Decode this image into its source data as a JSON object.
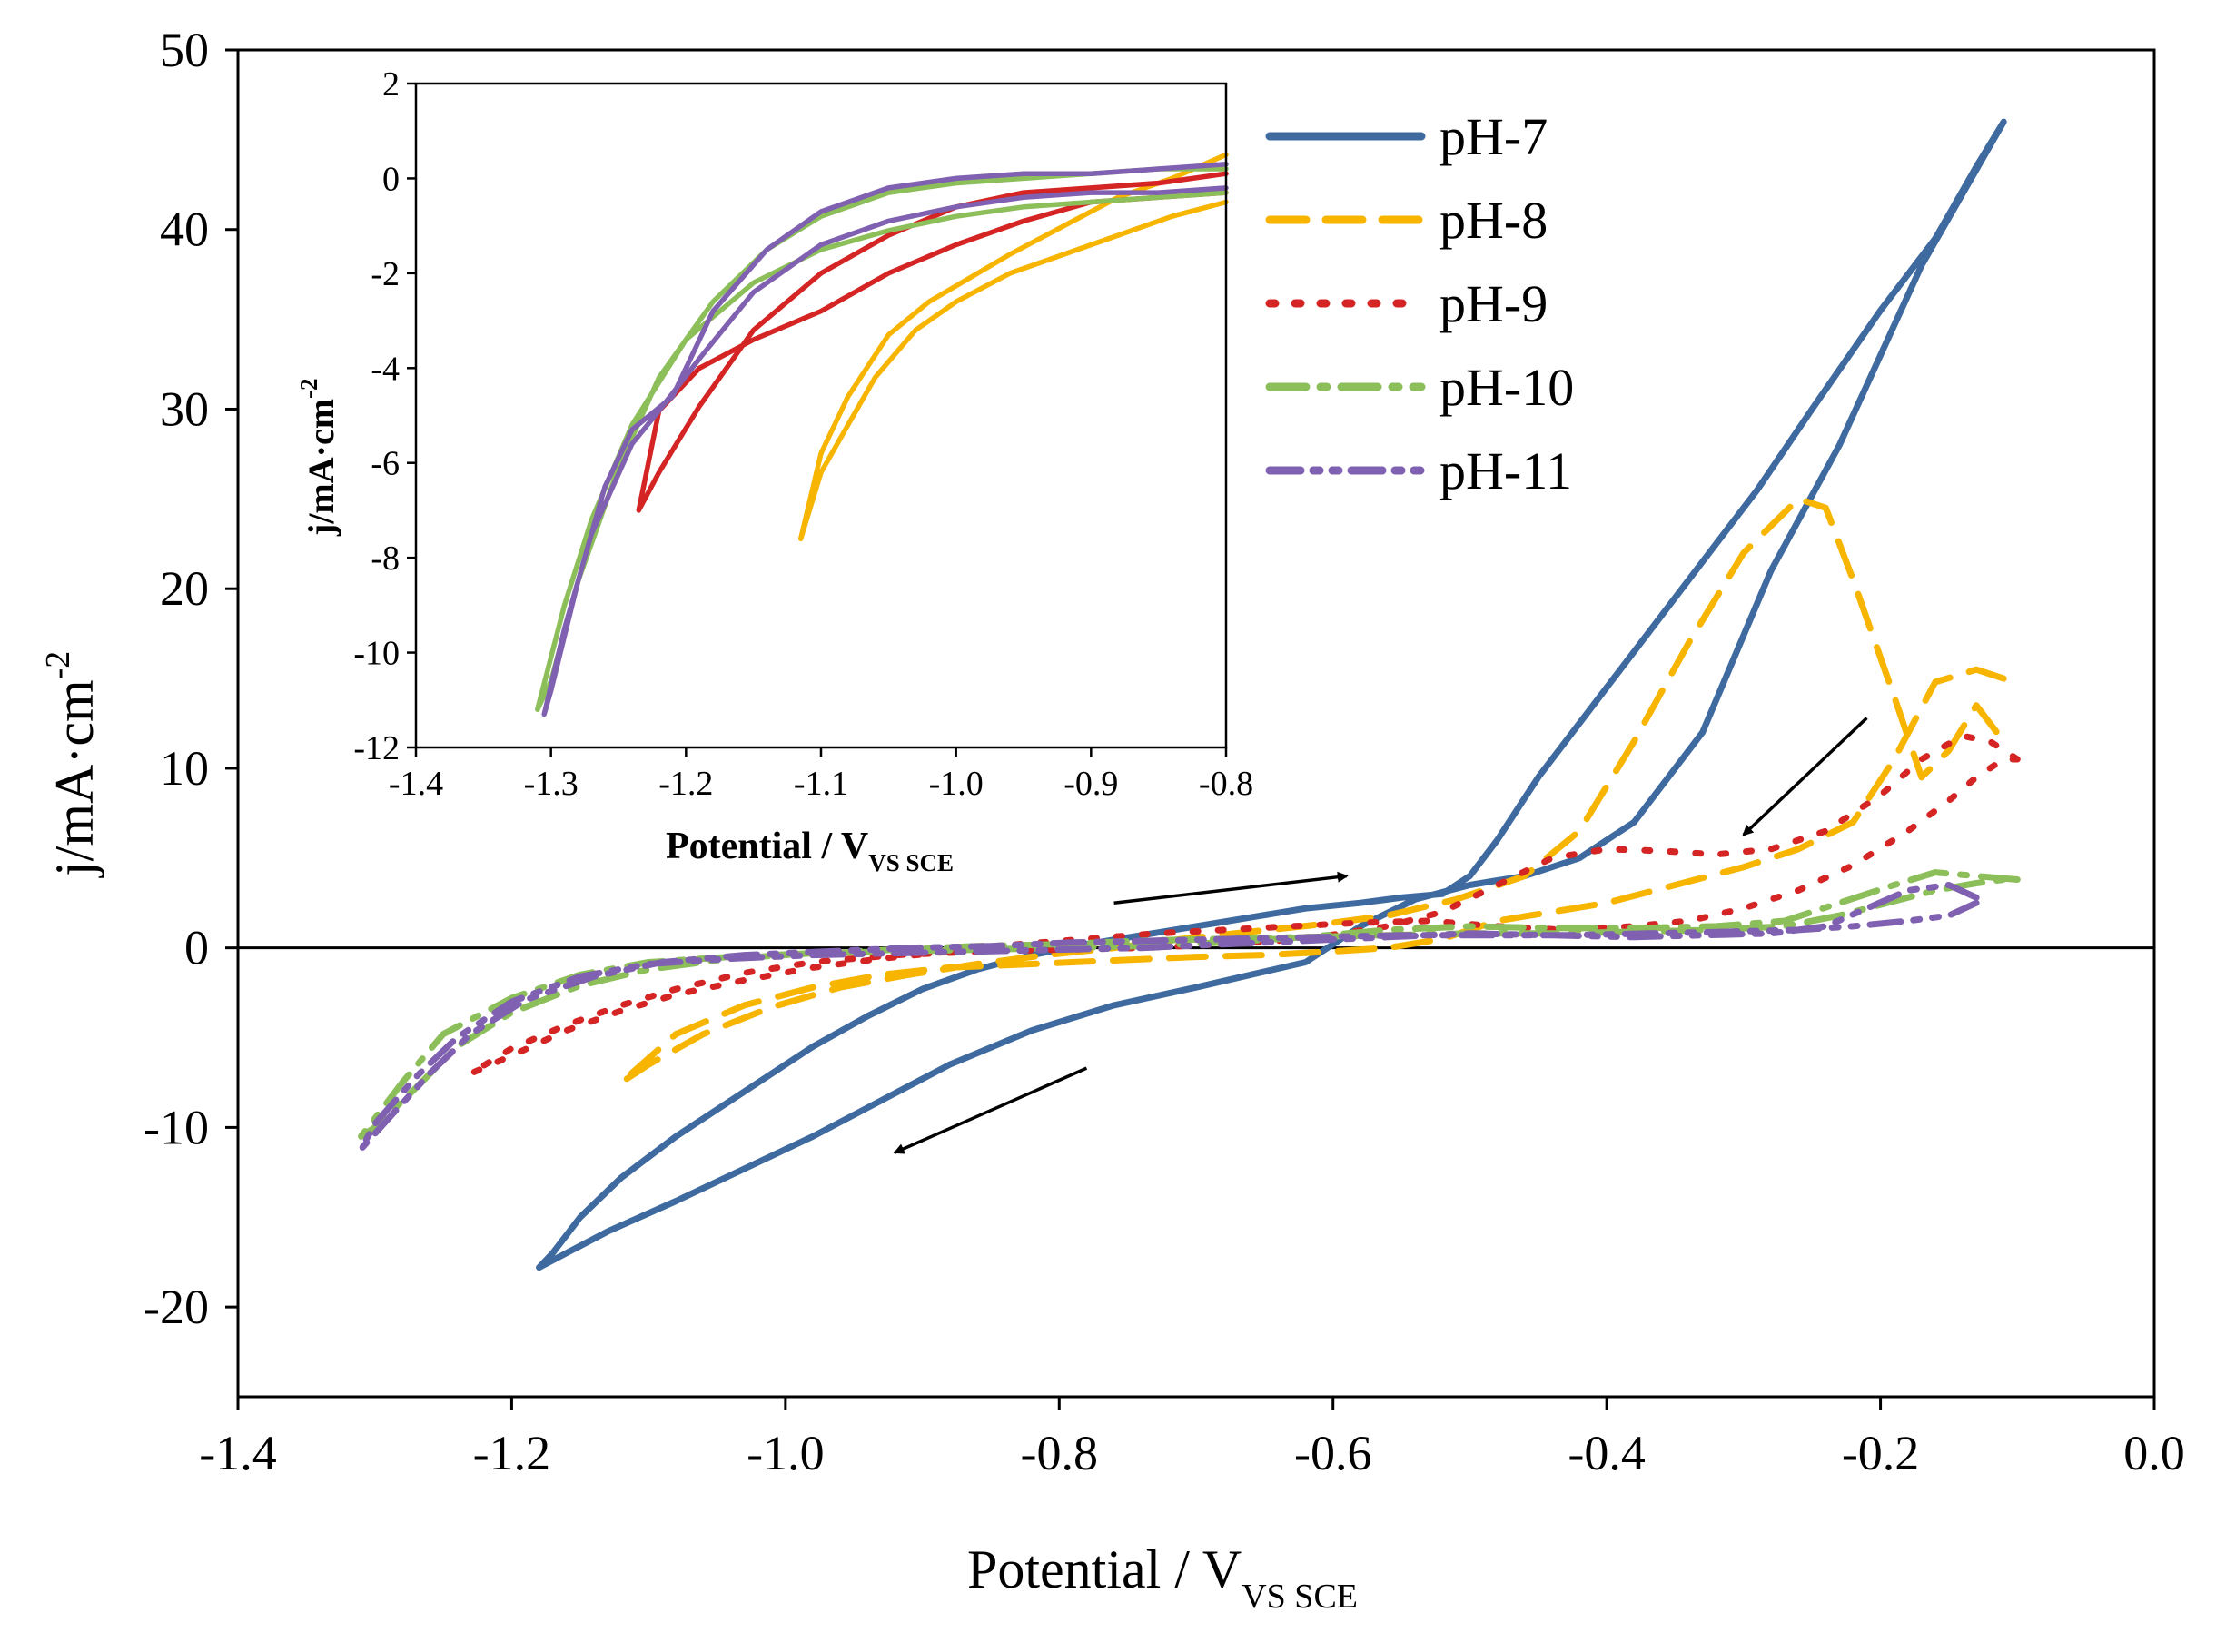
{
  "chart_data": [
    {
      "id": "main",
      "type": "line",
      "xlabel": "Potential / V",
      "xlabel_sub": "VS SCE",
      "ylabel": "j/mA·cm",
      "ylabel_sup": "-2",
      "xlim": [
        -1.4,
        0.0
      ],
      "ylim": [
        -25,
        50
      ],
      "xticks": [
        -1.4,
        -1.2,
        -1.0,
        -0.8,
        -0.6,
        -0.4,
        -0.2,
        0.0
      ],
      "xtick_labels": [
        "-1.4",
        "-1.2",
        "-1.0",
        "-0.8",
        "-0.6",
        "-0.4",
        "-0.2",
        "0.0"
      ],
      "yticks": [
        -20,
        -10,
        0,
        10,
        20,
        30,
        40,
        50
      ],
      "ytick_labels": [
        "-20",
        "-10",
        "0",
        "10",
        "20",
        "30",
        "40",
        "50"
      ],
      "zero_line": true,
      "legend_position": "top-right",
      "annotations": [
        {
          "type": "arrow",
          "from": [
            -0.76,
            2.5
          ],
          "to": [
            -0.59,
            4.0
          ]
        },
        {
          "type": "arrow",
          "from": [
            -0.21,
            12.8
          ],
          "to": [
            -0.3,
            6.3
          ]
        },
        {
          "type": "arrow",
          "from": [
            -0.78,
            -6.7
          ],
          "to": [
            -0.92,
            -11.4
          ]
        }
      ],
      "series": [
        {
          "name": "pH-7",
          "color": "#3f6aa0",
          "dash": "solid",
          "x": [
            -0.11,
            -0.14,
            -0.17,
            -0.2,
            -0.23,
            -0.28,
            -0.33,
            -0.38,
            -0.42,
            -0.46,
            -0.5,
            -0.54,
            -0.58,
            -0.62,
            -0.66,
            -0.7,
            -0.76,
            -0.82,
            -0.88,
            -0.93,
            -0.98,
            -1.03,
            -1.08,
            -1.13,
            -1.18,
            -1.17,
            -1.15,
            -1.12,
            -1.08,
            -1.03,
            -0.98,
            -0.94,
            -0.9,
            -0.86,
            -0.82,
            -0.78,
            -0.74,
            -0.7,
            -0.66,
            -0.62,
            -0.58,
            -0.55,
            -0.52,
            -0.5,
            -0.48,
            -0.45,
            -0.41,
            -0.37,
            -0.33,
            -0.29,
            -0.25,
            -0.2,
            -0.16,
            -0.13,
            -0.11
          ],
          "y": [
            46,
            42,
            38,
            33,
            28,
            21,
            12,
            7,
            5,
            4,
            3.5,
            2.7,
            1.2,
            -0.8,
            -1.5,
            -2.2,
            -3.2,
            -4.6,
            -6.5,
            -8.5,
            -10.5,
            -12.3,
            -14.1,
            -15.8,
            -17.8,
            -17.0,
            -15.0,
            -12.8,
            -10.5,
            -8.0,
            -5.5,
            -3.8,
            -2.3,
            -1.2,
            -0.4,
            0.2,
            0.7,
            1.2,
            1.7,
            2.2,
            2.5,
            2.8,
            3.0,
            4.0,
            6.0,
            9.5,
            13.5,
            17.5,
            21.5,
            25.5,
            30.0,
            35.5,
            39.5,
            43.5,
            46
          ]
        },
        {
          "name": "pH-8",
          "color": "#f7b500",
          "dash": "dashed",
          "x": [
            -0.11,
            -0.13,
            -0.16,
            -0.19,
            -0.22,
            -0.26,
            -0.3,
            -0.35,
            -0.4,
            -0.44,
            -0.48,
            -0.52,
            -0.56,
            -0.6,
            -0.65,
            -0.7,
            -0.76,
            -0.82,
            -0.88,
            -0.93,
            -0.98,
            -1.03,
            -1.08,
            -1.12,
            -1.1,
            -1.06,
            -1.01,
            -0.96,
            -0.91,
            -0.86,
            -0.81,
            -0.76,
            -0.71,
            -0.66,
            -0.61,
            -0.56,
            -0.51,
            -0.46,
            -0.42,
            -0.38,
            -0.34,
            -0.3,
            -0.26,
            -0.24,
            -0.22,
            -0.19,
            -0.17,
            -0.15,
            -0.13,
            -0.11
          ],
          "y": [
            15,
            15.5,
            14.8,
            10.5,
            7,
            5.5,
            4.5,
            3.5,
            2.5,
            2.0,
            1.5,
            0.5,
            0.0,
            -0.2,
            -0.4,
            -0.5,
            -0.7,
            -0.9,
            -1.1,
            -1.5,
            -2.2,
            -3.2,
            -4.8,
            -7.5,
            -6.5,
            -4.8,
            -3.3,
            -2.2,
            -1.5,
            -0.9,
            -0.4,
            0.0,
            0.5,
            0.9,
            1.3,
            1.8,
            2.7,
            4.0,
            6.5,
            11.5,
            17.0,
            22.0,
            25.0,
            24.5,
            20.5,
            14.0,
            9.5,
            11.0,
            13.5,
            11.5
          ]
        },
        {
          "name": "pH-9",
          "color": "#d42424",
          "dash": "dotted",
          "x": [
            -0.1,
            -0.12,
            -0.14,
            -0.17,
            -0.2,
            -0.24,
            -0.28,
            -0.32,
            -0.36,
            -0.4,
            -0.44,
            -0.48,
            -0.52,
            -0.56,
            -0.62,
            -0.68,
            -0.74,
            -0.8,
            -0.86,
            -0.92,
            -0.98,
            -1.03,
            -1.08,
            -1.12,
            -1.16,
            -1.2,
            -1.23,
            -1.2,
            -1.16,
            -1.12,
            -1.08,
            -1.03,
            -0.98,
            -0.93,
            -0.88,
            -0.83,
            -0.78,
            -0.73,
            -0.68,
            -0.63,
            -0.58,
            -0.53,
            -0.48,
            -0.43,
            -0.38,
            -0.34,
            -0.3,
            -0.26,
            -0.22,
            -0.18,
            -0.15,
            -0.13,
            -0.11,
            -0.1
          ],
          "y": [
            10.5,
            11.5,
            11.8,
            10.5,
            8.5,
            6.5,
            5.5,
            5.2,
            5.4,
            5.5,
            5.0,
            3.5,
            2.0,
            1.2,
            0.5,
            0.2,
            0.0,
            -0.1,
            -0.2,
            -0.4,
            -0.8,
            -1.4,
            -2.3,
            -3.2,
            -4.3,
            -5.6,
            -7.0,
            -6.0,
            -4.6,
            -3.5,
            -2.6,
            -1.8,
            -1.1,
            -0.6,
            -0.2,
            0.2,
            0.5,
            0.8,
            1.0,
            1.2,
            1.4,
            1.5,
            1.2,
            1.0,
            1.2,
            1.5,
            2.2,
            3.2,
            4.6,
            6.5,
            8.2,
            9.5,
            10.5,
            10.5
          ]
        },
        {
          "name": "pH-10",
          "color": "#8cbe5a",
          "dash": "dashdot",
          "x": [
            -0.1,
            -0.13,
            -0.16,
            -0.19,
            -0.23,
            -0.27,
            -0.32,
            -0.38,
            -0.44,
            -0.5,
            -0.56,
            -0.62,
            -0.68,
            -0.74,
            -0.8,
            -0.86,
            -0.92,
            -0.98,
            -1.04,
            -1.1,
            -1.15,
            -1.2,
            -1.25,
            -1.28,
            -1.31,
            -1.3,
            -1.27,
            -1.24,
            -1.2,
            -1.15,
            -1.1,
            -1.04,
            -0.98,
            -0.92,
            -0.86,
            -0.8,
            -0.74,
            -0.68,
            -0.62,
            -0.56,
            -0.5,
            -0.44,
            -0.38,
            -0.32,
            -0.27,
            -0.23,
            -0.19,
            -0.16,
            -0.13,
            -0.11
          ],
          "y": [
            3.8,
            4.0,
            4.2,
            3.5,
            2.5,
            1.5,
            1.2,
            1.1,
            1.1,
            1.2,
            1.0,
            0.6,
            0.3,
            0.1,
            0.0,
            -0.1,
            -0.2,
            -0.3,
            -0.5,
            -0.8,
            -1.5,
            -2.8,
            -4.8,
            -7.5,
            -10.5,
            -10.0,
            -7.8,
            -5.5,
            -3.6,
            -2.1,
            -1.2,
            -0.6,
            -0.3,
            -0.1,
            0.1,
            0.2,
            0.4,
            0.5,
            0.6,
            0.7,
            0.8,
            0.8,
            0.9,
            1.0,
            1.2,
            1.8,
            2.6,
            3.2,
            3.6,
            3.8
          ]
        },
        {
          "name": "pH-11",
          "color": "#8060b0",
          "dash": "dashdotdot",
          "x": [
            -0.13,
            -0.15,
            -0.18,
            -0.21,
            -0.24,
            -0.28,
            -0.33,
            -0.38,
            -0.44,
            -0.5,
            -0.56,
            -0.62,
            -0.68,
            -0.74,
            -0.8,
            -0.86,
            -0.92,
            -0.98,
            -1.04,
            -1.1,
            -1.15,
            -1.2,
            -1.24,
            -1.27,
            -1.3,
            -1.31,
            -1.29,
            -1.26,
            -1.23,
            -1.19,
            -1.14,
            -1.09,
            -1.03,
            -0.97,
            -0.91,
            -0.85,
            -0.79,
            -0.73,
            -0.67,
            -0.61,
            -0.55,
            -0.49,
            -0.43,
            -0.37,
            -0.31,
            -0.26,
            -0.22,
            -0.18,
            -0.15,
            -0.13
          ],
          "y": [
            2.8,
            3.5,
            3.2,
            2.2,
            1.2,
            0.8,
            0.7,
            0.6,
            0.7,
            0.8,
            0.6,
            0.4,
            0.2,
            0.0,
            -0.1,
            -0.2,
            -0.3,
            -0.4,
            -0.6,
            -0.9,
            -1.6,
            -3.0,
            -5.0,
            -7.2,
            -9.8,
            -11.2,
            -9.5,
            -7.0,
            -4.8,
            -2.9,
            -1.6,
            -0.8,
            -0.4,
            -0.2,
            0.0,
            0.1,
            0.3,
            0.4,
            0.5,
            0.6,
            0.7,
            0.7,
            0.7,
            0.8,
            0.9,
            1.0,
            1.2,
            1.5,
            1.8,
            2.5
          ]
        }
      ]
    },
    {
      "id": "inset",
      "type": "line",
      "xlabel": "Potential / V",
      "xlabel_sub": "VS SCE",
      "ylabel": "j/mA·cm",
      "ylabel_sup": "-2",
      "xlim": [
        -1.4,
        -0.8
      ],
      "ylim": [
        -12,
        2
      ],
      "xticks": [
        -1.4,
        -1.3,
        -1.2,
        -1.1,
        -1.0,
        -0.9,
        -0.8
      ],
      "xtick_labels": [
        "-1.4",
        "-1.3",
        "-1.2",
        "-1.1",
        "-1.0",
        "-0.9",
        "-0.8"
      ],
      "yticks": [
        -12,
        -10,
        -8,
        -6,
        -4,
        -2,
        0,
        2
      ],
      "ytick_labels": [
        "-12",
        "-10",
        "-8",
        "-6",
        "-4",
        "-2",
        "0",
        "2"
      ],
      "series": [
        {
          "name": "pH-8",
          "color": "#f7b500",
          "x": [
            -0.8,
            -0.84,
            -0.88,
            -0.92,
            -0.96,
            -1.0,
            -1.03,
            -1.06,
            -1.08,
            -1.1,
            -1.115,
            -1.11,
            -1.1,
            -1.08,
            -1.05,
            -1.02,
            -0.99,
            -0.96,
            -0.92,
            -0.88,
            -0.84,
            -0.8
          ],
          "y": [
            -0.5,
            -0.8,
            -1.2,
            -1.6,
            -2.0,
            -2.6,
            -3.2,
            -4.2,
            -5.2,
            -6.2,
            -7.6,
            -7.0,
            -5.8,
            -4.6,
            -3.3,
            -2.6,
            -2.1,
            -1.6,
            -1.0,
            -0.4,
            0.0,
            0.5
          ]
        },
        {
          "name": "pH-9",
          "color": "#d42424",
          "x": [
            -0.8,
            -0.85,
            -0.9,
            -0.95,
            -1.0,
            -1.05,
            -1.1,
            -1.15,
            -1.19,
            -1.22,
            -1.235,
            -1.22,
            -1.19,
            -1.15,
            -1.1,
            -1.05,
            -1.0,
            -0.95,
            -0.9,
            -0.85,
            -0.8
          ],
          "y": [
            -0.3,
            -0.4,
            -0.5,
            -0.9,
            -1.4,
            -2.0,
            -2.8,
            -3.4,
            -4.0,
            -4.9,
            -7.0,
            -6.2,
            -4.8,
            -3.2,
            -2.0,
            -1.2,
            -0.6,
            -0.3,
            -0.2,
            -0.1,
            0.1
          ]
        },
        {
          "name": "pH-10",
          "color": "#8cbe5a",
          "x": [
            -0.8,
            -0.85,
            -0.9,
            -0.95,
            -1.0,
            -1.05,
            -1.1,
            -1.15,
            -1.2,
            -1.24,
            -1.27,
            -1.29,
            -1.31,
            -1.3,
            -1.28,
            -1.25,
            -1.22,
            -1.18,
            -1.14,
            -1.1,
            -1.05,
            -1.0,
            -0.95,
            -0.9,
            -0.85,
            -0.8
          ],
          "y": [
            -0.3,
            -0.4,
            -0.5,
            -0.6,
            -0.8,
            -1.1,
            -1.5,
            -2.2,
            -3.4,
            -5.2,
            -7.2,
            -9.0,
            -11.2,
            -10.6,
            -8.5,
            -6.1,
            -4.2,
            -2.6,
            -1.5,
            -0.8,
            -0.3,
            -0.1,
            0.0,
            0.1,
            0.2,
            0.2
          ]
        },
        {
          "name": "pH-11",
          "color": "#8060b0",
          "x": [
            -0.8,
            -0.85,
            -0.9,
            -0.95,
            -1.0,
            -1.05,
            -1.1,
            -1.15,
            -1.19,
            -1.22,
            -1.24,
            -1.27,
            -1.29,
            -1.305,
            -1.3,
            -1.28,
            -1.26,
            -1.24,
            -1.21,
            -1.18,
            -1.14,
            -1.1,
            -1.05,
            -1.0,
            -0.95,
            -0.9,
            -0.85,
            -0.8
          ],
          "y": [
            -0.2,
            -0.3,
            -0.3,
            -0.4,
            -0.6,
            -0.9,
            -1.4,
            -2.4,
            -3.8,
            -4.9,
            -5.6,
            -7.5,
            -9.5,
            -11.3,
            -10.8,
            -8.5,
            -6.5,
            -5.3,
            -4.6,
            -2.8,
            -1.5,
            -0.7,
            -0.2,
            0.0,
            0.1,
            0.1,
            0.2,
            0.3
          ]
        }
      ]
    }
  ]
}
